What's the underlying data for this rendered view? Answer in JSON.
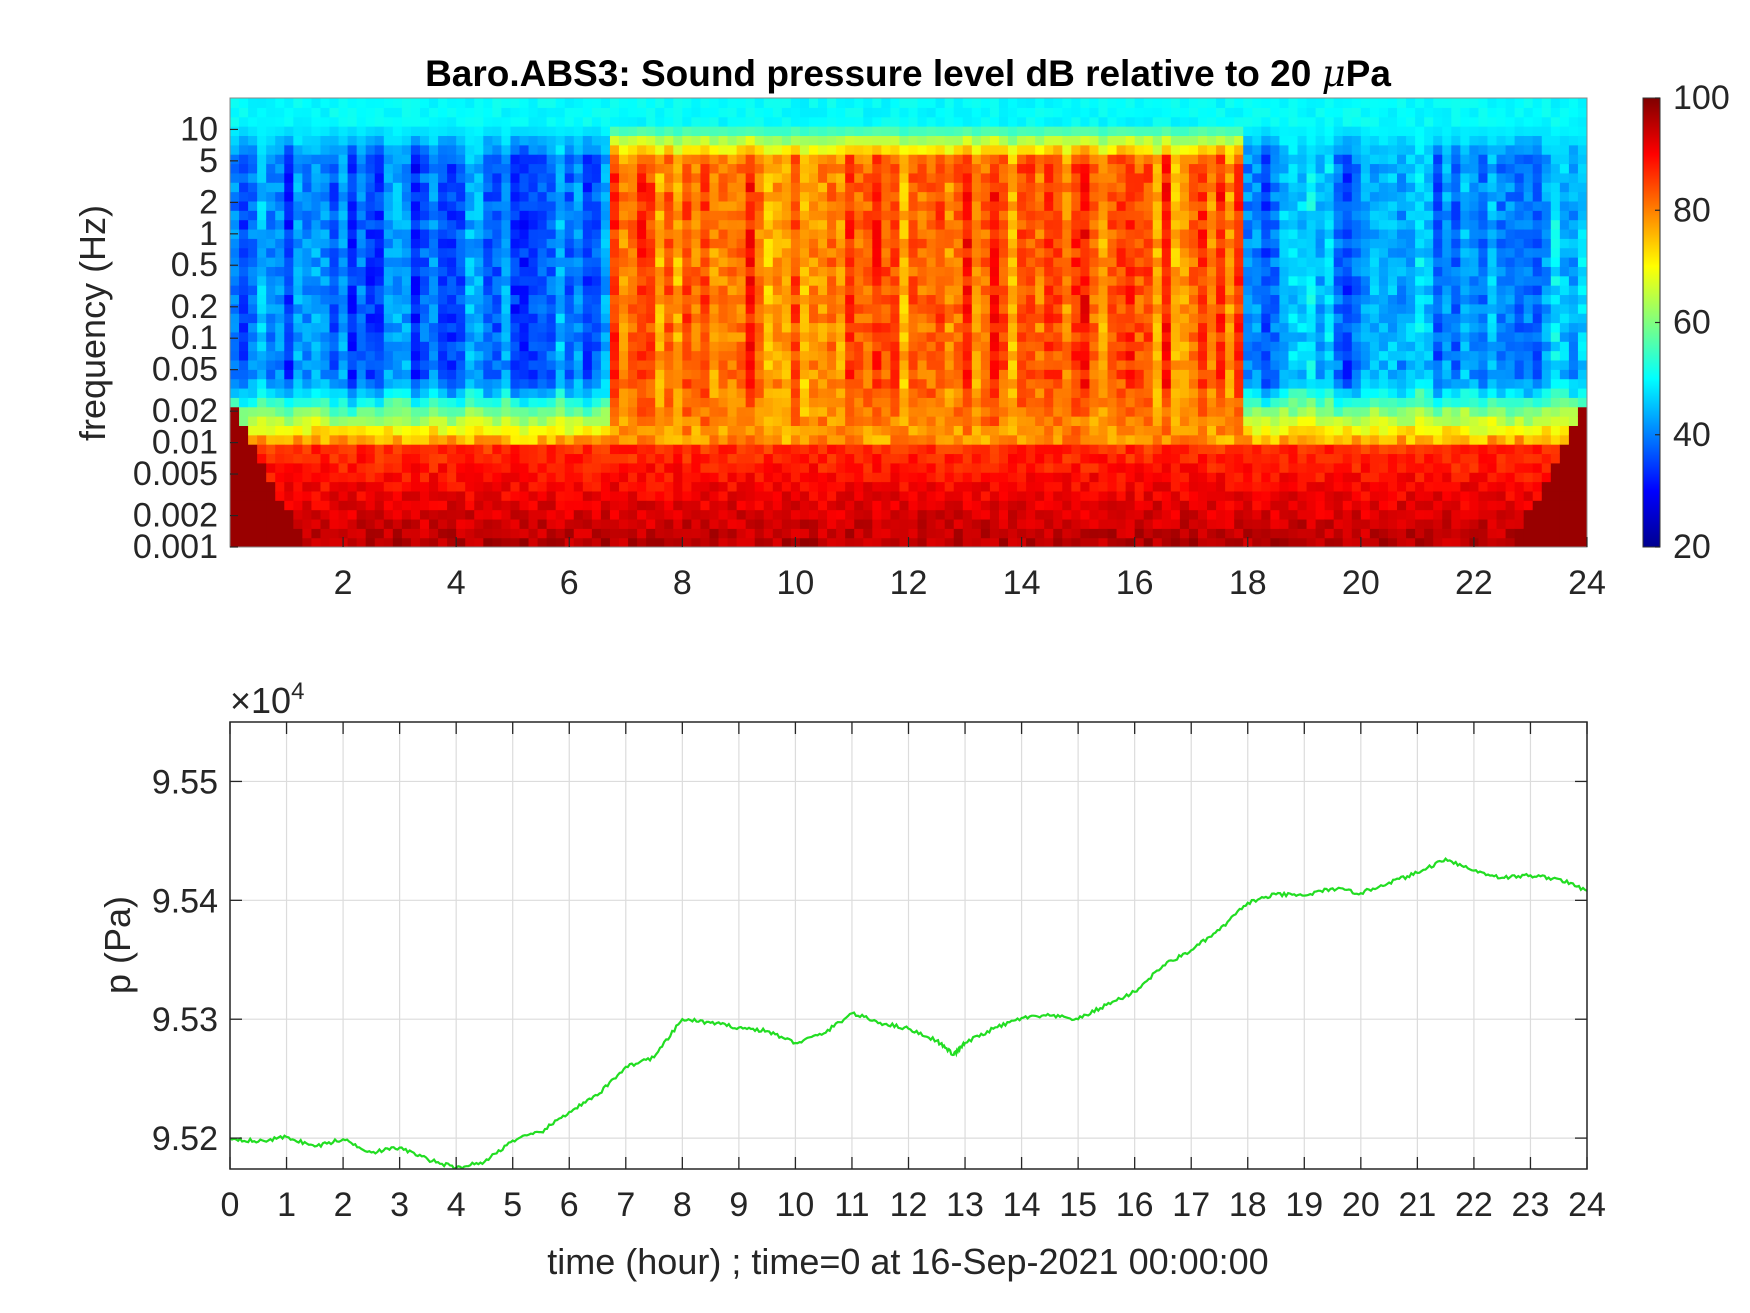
{
  "chart_data": [
    {
      "type": "heatmap",
      "title_main": "Baro.ABS3: Sound pressure level dB relative to 20 ",
      "title_mu": "μ",
      "title_unit": "Pa",
      "ylabel": "frequency (Hz)",
      "xlabel": "",
      "xlim": [
        0,
        24
      ],
      "x_tick_labels": [
        "2",
        "4",
        "6",
        "8",
        "10",
        "12",
        "14",
        "16",
        "18",
        "20",
        "22",
        "24"
      ],
      "y_scale": "log",
      "ylim": [
        0.001,
        20
      ],
      "y_tick_labels": [
        "10",
        "5",
        "2",
        "1",
        "0.5",
        "0.2",
        "0.1",
        "0.05",
        "0.02",
        "0.01",
        "0.005",
        "0.002",
        "0.001"
      ],
      "colormap": "jet",
      "colorbar": {
        "range": [
          20,
          100
        ],
        "tick_labels": [
          "100",
          "80",
          "60",
          "40",
          "20"
        ]
      },
      "grid": false,
      "regions": [
        {
          "time_hours": [
            0,
            6.8
          ],
          "mid_band_level_db": 38
        },
        {
          "time_hours": [
            6.8,
            17.9
          ],
          "mid_band_level_db": 82
        },
        {
          "time_hours": [
            17.9,
            24
          ],
          "mid_band_level_db": 42
        }
      ]
    },
    {
      "type": "line",
      "xlabel": "time (hour) ; time=0 at 16-Sep-2021 00:00:00",
      "ylabel": "p (Pa)",
      "exponent_base": "×10",
      "exponent_power": "4",
      "xlim": [
        0,
        24
      ],
      "ylim": [
        95174,
        95550
      ],
      "x_tick_labels": [
        "0",
        "1",
        "2",
        "3",
        "4",
        "5",
        "6",
        "7",
        "8",
        "9",
        "10",
        "11",
        "12",
        "13",
        "14",
        "15",
        "16",
        "17",
        "18",
        "19",
        "20",
        "21",
        "22",
        "23",
        "24"
      ],
      "y_tick_labels": [
        "9.55",
        "9.54",
        "9.53",
        "9.52"
      ],
      "grid": true,
      "line_color": "#22dd22",
      "series": [
        {
          "x": [
            0,
            0.5,
            1,
            1.5,
            2,
            2.5,
            3,
            3.5,
            4,
            4.5,
            5,
            5.5,
            6,
            6.5,
            7,
            7.5,
            8,
            8.5,
            9,
            9.5,
            10,
            10.5,
            11,
            11.5,
            12,
            12.5,
            12.8,
            13,
            13.5,
            14,
            14.5,
            15,
            15.5,
            16,
            16.5,
            17,
            17.5,
            18,
            18.5,
            19,
            19.5,
            20,
            20.5,
            21,
            21.5,
            22,
            22.5,
            23,
            23.5,
            24
          ],
          "y": [
            95200,
            95197,
            95201,
            95193,
            95199,
            95188,
            95192,
            95182,
            95175,
            95180,
            95198,
            95205,
            95222,
            95236,
            95260,
            95268,
            95300,
            95297,
            95293,
            95290,
            95280,
            95288,
            95305,
            95297,
            95292,
            95282,
            95270,
            95280,
            95292,
            95301,
            95303,
            95300,
            95312,
            95323,
            95345,
            95358,
            95375,
            95398,
            95405,
            95404,
            95410,
            95406,
            95415,
            95423,
            95435,
            95425,
            95419,
            95421,
            95418,
            95408
          ]
        }
      ]
    }
  ]
}
